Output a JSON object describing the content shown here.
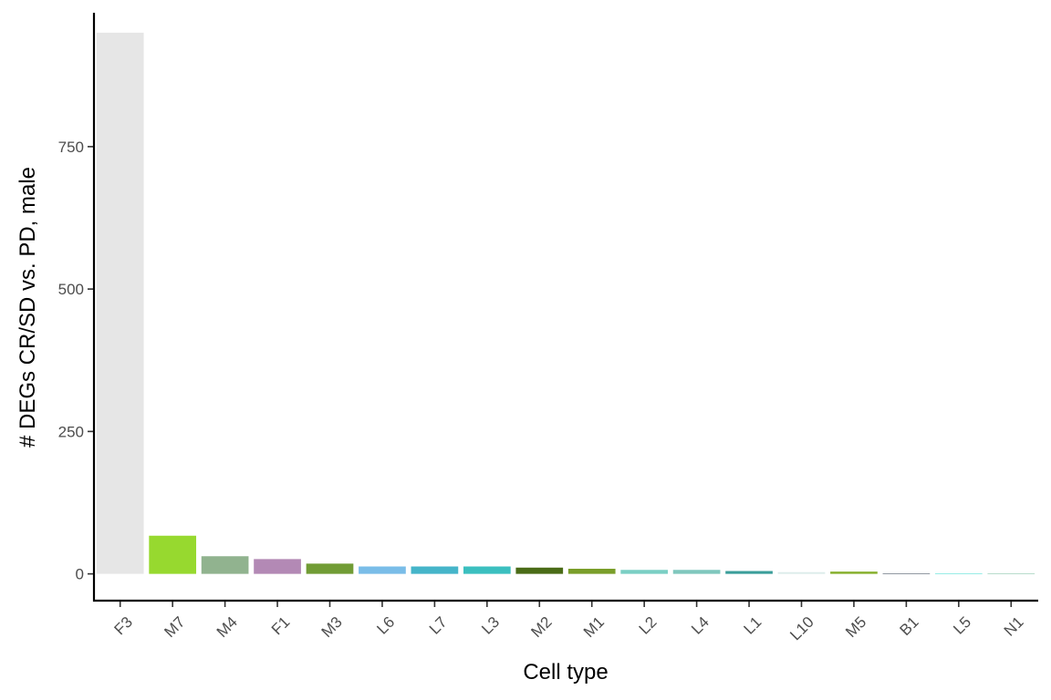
{
  "chart_data": {
    "type": "bar",
    "xlabel": "Cell type",
    "ylabel": "# DEGs CR/SD vs. PD, male",
    "categories": [
      "F3",
      "M7",
      "M4",
      "F1",
      "M3",
      "L6",
      "L7",
      "L3",
      "M2",
      "M1",
      "L2",
      "L4",
      "L1",
      "L10",
      "M5",
      "B1",
      "L5",
      "N1"
    ],
    "values": [
      950,
      67,
      31,
      26,
      18,
      13,
      13,
      13,
      11,
      9,
      7,
      7,
      5,
      3,
      4,
      1,
      1,
      1
    ],
    "colors": [
      "#e6e6e6",
      "#97d92f",
      "#91b38f",
      "#b389b5",
      "#719c35",
      "#7abde8",
      "#45b5c9",
      "#3bbfbf",
      "#4a6b17",
      "#7a9e2a",
      "#7acfc4",
      "#7fc7bd",
      "#3b9e9a",
      "#dcecea",
      "#88b02e",
      "#76808c",
      "#7fe8e0",
      "#a6d4c0"
    ],
    "yticks": [
      0,
      250,
      500,
      750
    ],
    "ylim": [
      -47,
      985
    ],
    "grid": false,
    "legend": "none"
  }
}
